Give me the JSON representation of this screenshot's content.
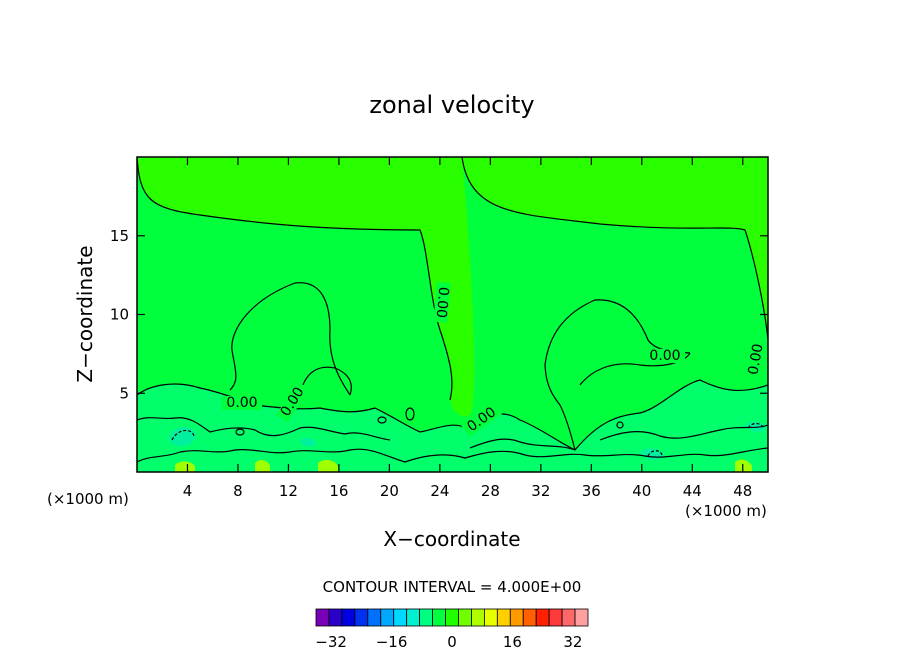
{
  "chart_data": {
    "type": "heatmap",
    "title": "zonal velocity",
    "xlabel": "X−coordinate",
    "ylabel": "Z−coordinate",
    "x_unit_left": "(×1000 m)",
    "x_unit_right": "(×1000 m)",
    "xlim": [
      0,
      50
    ],
    "ylim": [
      0,
      20
    ],
    "x_ticks": [
      4,
      8,
      12,
      16,
      20,
      24,
      28,
      32,
      36,
      40,
      44,
      48
    ],
    "y_ticks": [
      5,
      10,
      15
    ],
    "contour_interval_text": "CONTOUR INTERVAL = 4.000E+00",
    "contour_label": "0.00",
    "colorbar": {
      "min": -36,
      "max": 36,
      "step": 4,
      "tick_values": [
        -32,
        -16,
        0,
        16,
        32
      ],
      "tick_labels": [
        "−32",
        "−16",
        "0",
        "16",
        "32"
      ],
      "colors": [
        "#7a00b8",
        "#2a00c8",
        "#0000e0",
        "#0030f0",
        "#0070ff",
        "#00a8ff",
        "#00d8ff",
        "#00f0d0",
        "#00ff80",
        "#00ff40",
        "#20ff00",
        "#70ff00",
        "#b0ff00",
        "#e8ff00",
        "#ffd000",
        "#ff9a00",
        "#ff6000",
        "#ff2000",
        "#ff3a3a",
        "#ff6868",
        "#ffa0a0"
      ]
    },
    "field_colors": {
      "upper": "#2aff00",
      "middle": "#00ff3c",
      "lower": "#00ff6a",
      "dark_patch": "#00f0a0",
      "yellow_patch": "#a0ff00"
    }
  }
}
